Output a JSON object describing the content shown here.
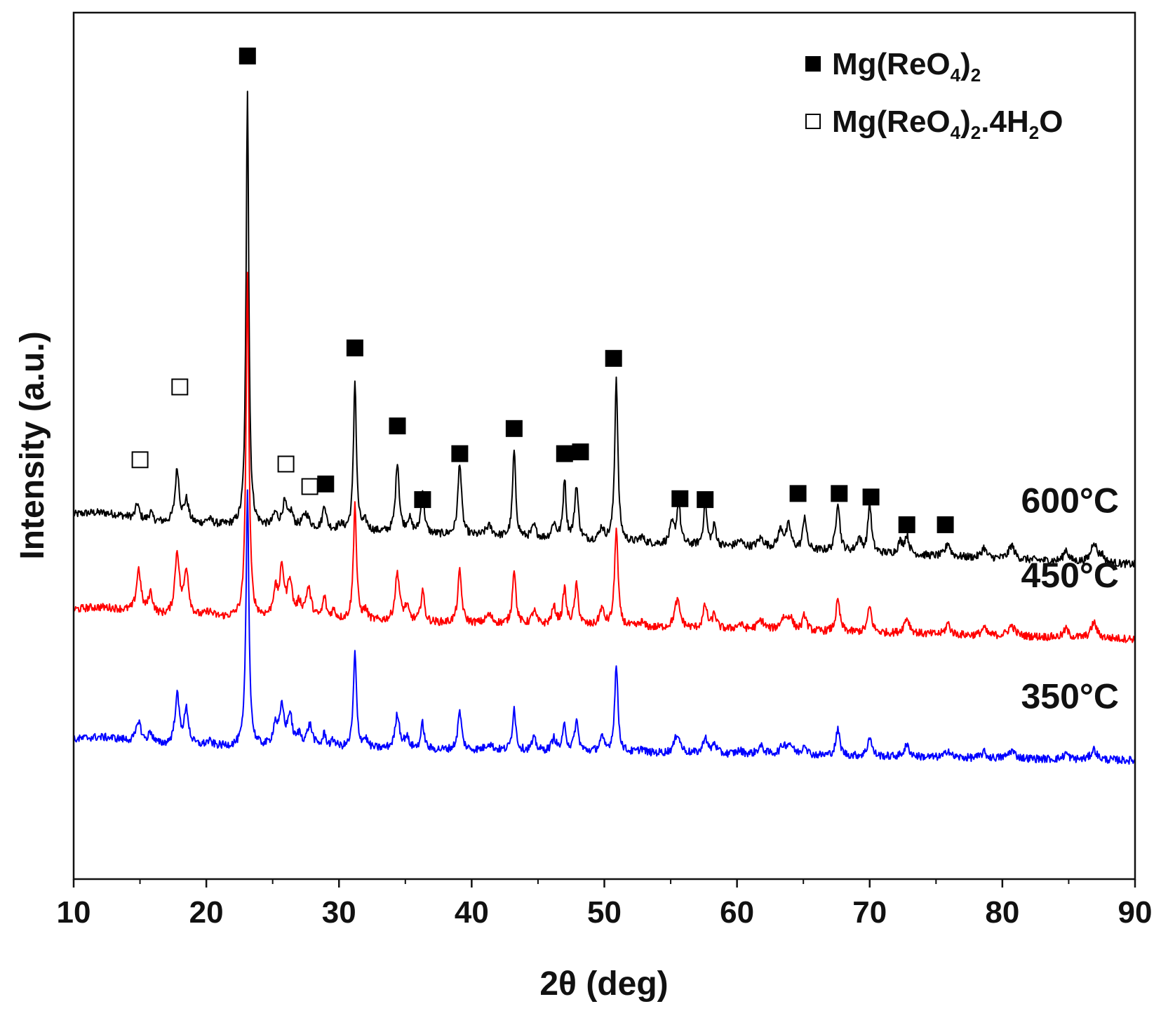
{
  "chart_data": {
    "type": "line",
    "xlabel": "2θ (deg)",
    "ylabel": "Intensity (a.u.)",
    "xlim": [
      10,
      90
    ],
    "xticks": [
      10,
      20,
      30,
      40,
      50,
      60,
      70,
      80,
      90
    ],
    "ylim": [
      0,
      100
    ],
    "yticks_shown": false,
    "legend": {
      "position": "top-right",
      "entries": [
        {
          "symbol": "filled-square",
          "name": "Mg(ReO4)2",
          "parts": [
            [
              "Mg(ReO",
              false
            ],
            [
              "4",
              true
            ],
            [
              ")",
              false
            ],
            [
              "2",
              true
            ]
          ]
        },
        {
          "symbol": "open-square",
          "name": "Mg(ReO4)2.4H2O",
          "parts": [
            [
              "Mg(ReO",
              false
            ],
            [
              "4",
              true
            ],
            [
              ")",
              false
            ],
            [
              "2",
              true
            ],
            [
              ".4H",
              false
            ],
            [
              "2",
              true
            ],
            [
              "O",
              false
            ]
          ]
        }
      ]
    },
    "series": [
      {
        "name": "600°C",
        "color": "#000000",
        "baseline": 41.5,
        "end_offset": -5.2,
        "peaks": [
          [
            14.8,
            1.8,
            0.15
          ],
          [
            15.8,
            1.0,
            0.15
          ],
          [
            17.8,
            6.2,
            0.18
          ],
          [
            18.5,
            2.6,
            0.2
          ],
          [
            20.2,
            0.6,
            0.3
          ],
          [
            23.1,
            50.5,
            0.12
          ],
          [
            25.2,
            1.5,
            0.2
          ],
          [
            25.9,
            2.8,
            0.2
          ],
          [
            26.4,
            1.6,
            0.18
          ],
          [
            27.5,
            1.7,
            0.3
          ],
          [
            28.9,
            2.9,
            0.15
          ],
          [
            30.1,
            0.6,
            0.2
          ],
          [
            31.2,
            17.5,
            0.13
          ],
          [
            32.0,
            1.0,
            0.2
          ],
          [
            34.4,
            8.2,
            0.16
          ],
          [
            35.3,
            1.6,
            0.2
          ],
          [
            36.3,
            5.0,
            0.15
          ],
          [
            39.1,
            8.5,
            0.16
          ],
          [
            41.3,
            1.2,
            0.3
          ],
          [
            43.2,
            10.0,
            0.14
          ],
          [
            44.7,
            1.4,
            0.2
          ],
          [
            46.2,
            1.8,
            0.2
          ],
          [
            47.0,
            7.0,
            0.13
          ],
          [
            47.9,
            6.3,
            0.16
          ],
          [
            49.8,
            1.5,
            0.2
          ],
          [
            50.9,
            19.0,
            0.14
          ],
          [
            52.8,
            0.7,
            0.2
          ],
          [
            55.1,
            2.2,
            0.2
          ],
          [
            55.6,
            5.0,
            0.15
          ],
          [
            57.6,
            5.0,
            0.15
          ],
          [
            58.3,
            2.4,
            0.15
          ],
          [
            60.2,
            0.7,
            0.3
          ],
          [
            61.8,
            1.1,
            0.3
          ],
          [
            63.3,
            2.2,
            0.25
          ],
          [
            63.9,
            2.6,
            0.2
          ],
          [
            65.1,
            4.0,
            0.15
          ],
          [
            67.6,
            5.8,
            0.17
          ],
          [
            69.2,
            1.6,
            0.2
          ],
          [
            70.0,
            5.8,
            0.15
          ],
          [
            72.3,
            1.3,
            0.2
          ],
          [
            72.8,
            2.1,
            0.2
          ],
          [
            75.9,
            1.6,
            0.2
          ],
          [
            78.6,
            1.2,
            0.2
          ],
          [
            80.7,
            1.6,
            0.25
          ],
          [
            84.8,
            1.4,
            0.2
          ],
          [
            86.9,
            2.4,
            0.25
          ],
          [
            87.5,
            0.8,
            0.2
          ]
        ]
      },
      {
        "name": "450°C",
        "color": "#ff0000",
        "baseline": 30.5,
        "end_offset": -2.8,
        "peaks": [
          [
            14.9,
            5.0,
            0.2
          ],
          [
            15.8,
            2.4,
            0.2
          ],
          [
            17.8,
            7.3,
            0.2
          ],
          [
            18.5,
            5.3,
            0.2
          ],
          [
            20.2,
            0.6,
            0.3
          ],
          [
            23.1,
            39.5,
            0.13
          ],
          [
            25.2,
            3.0,
            0.2
          ],
          [
            25.7,
            5.5,
            0.2
          ],
          [
            26.3,
            4.3,
            0.2
          ],
          [
            27.0,
            1.5,
            0.2
          ],
          [
            27.7,
            3.4,
            0.25
          ],
          [
            28.9,
            2.5,
            0.15
          ],
          [
            29.6,
            1.0,
            0.2
          ],
          [
            31.2,
            13.5,
            0.14
          ],
          [
            32.0,
            1.1,
            0.2
          ],
          [
            34.4,
            5.6,
            0.2
          ],
          [
            35.1,
            1.6,
            0.2
          ],
          [
            36.3,
            3.8,
            0.15
          ],
          [
            39.1,
            6.0,
            0.17
          ],
          [
            41.3,
            1.0,
            0.3
          ],
          [
            43.2,
            6.5,
            0.15
          ],
          [
            44.7,
            1.6,
            0.2
          ],
          [
            46.2,
            2.0,
            0.2
          ],
          [
            47.0,
            4.2,
            0.15
          ],
          [
            47.9,
            4.6,
            0.17
          ],
          [
            49.8,
            2.0,
            0.2
          ],
          [
            50.9,
            11.4,
            0.15
          ],
          [
            52.8,
            0.6,
            0.2
          ],
          [
            55.5,
            3.2,
            0.25
          ],
          [
            57.6,
            2.7,
            0.18
          ],
          [
            58.3,
            1.7,
            0.18
          ],
          [
            60.2,
            0.6,
            0.3
          ],
          [
            61.8,
            1.1,
            0.3
          ],
          [
            63.5,
            1.3,
            0.3
          ],
          [
            64.0,
            1.4,
            0.25
          ],
          [
            65.1,
            1.8,
            0.18
          ],
          [
            67.6,
            3.6,
            0.18
          ],
          [
            70.0,
            3.0,
            0.18
          ],
          [
            72.8,
            1.8,
            0.25
          ],
          [
            75.9,
            1.3,
            0.2
          ],
          [
            78.6,
            0.9,
            0.2
          ],
          [
            80.7,
            1.2,
            0.3
          ],
          [
            84.8,
            1.0,
            0.2
          ],
          [
            86.9,
            1.8,
            0.25
          ]
        ]
      },
      {
        "name": "350°C",
        "color": "#0000ff",
        "baseline": 15.5,
        "end_offset": -1.8,
        "peaks": [
          [
            14.9,
            2.5,
            0.2
          ],
          [
            15.8,
            1.3,
            0.2
          ],
          [
            17.8,
            5.7,
            0.2
          ],
          [
            18.5,
            4.0,
            0.2
          ],
          [
            20.2,
            0.5,
            0.3
          ],
          [
            23.1,
            29.5,
            0.13
          ],
          [
            25.2,
            2.5,
            0.2
          ],
          [
            25.7,
            4.3,
            0.2
          ],
          [
            26.3,
            3.6,
            0.2
          ],
          [
            27.0,
            1.3,
            0.2
          ],
          [
            27.8,
            2.5,
            0.25
          ],
          [
            28.9,
            1.5,
            0.15
          ],
          [
            29.6,
            0.8,
            0.2
          ],
          [
            31.2,
            11.0,
            0.14
          ],
          [
            32.0,
            1.0,
            0.2
          ],
          [
            34.4,
            4.0,
            0.2
          ],
          [
            35.1,
            1.3,
            0.2
          ],
          [
            36.3,
            3.0,
            0.15
          ],
          [
            39.1,
            4.5,
            0.17
          ],
          [
            41.3,
            0.8,
            0.3
          ],
          [
            43.2,
            5.0,
            0.15
          ],
          [
            44.7,
            1.4,
            0.2
          ],
          [
            46.2,
            1.5,
            0.2
          ],
          [
            47.0,
            3.0,
            0.15
          ],
          [
            47.9,
            3.5,
            0.17
          ],
          [
            49.8,
            1.6,
            0.2
          ],
          [
            50.9,
            10.0,
            0.15
          ],
          [
            52.8,
            0.5,
            0.2
          ],
          [
            55.5,
            2.3,
            0.25
          ],
          [
            57.6,
            2.0,
            0.18
          ],
          [
            58.3,
            1.2,
            0.18
          ],
          [
            60.2,
            0.4,
            0.3
          ],
          [
            61.8,
            0.9,
            0.3
          ],
          [
            63.5,
            1.0,
            0.3
          ],
          [
            64.0,
            1.1,
            0.25
          ],
          [
            65.1,
            1.3,
            0.18
          ],
          [
            67.6,
            3.0,
            0.18
          ],
          [
            70.0,
            2.3,
            0.18
          ],
          [
            72.8,
            1.3,
            0.25
          ],
          [
            75.9,
            0.9,
            0.2
          ],
          [
            78.6,
            0.7,
            0.2
          ],
          [
            80.7,
            0.9,
            0.3
          ],
          [
            84.8,
            0.7,
            0.2
          ],
          [
            86.9,
            1.2,
            0.25
          ]
        ]
      }
    ],
    "markers": {
      "filled": [
        {
          "x": 23.1,
          "y": 95.0
        },
        {
          "x": 29.0,
          "y": 45.6
        },
        {
          "x": 31.2,
          "y": 61.3
        },
        {
          "x": 34.4,
          "y": 52.3
        },
        {
          "x": 36.3,
          "y": 43.8
        },
        {
          "x": 39.1,
          "y": 49.1
        },
        {
          "x": 43.2,
          "y": 52.0
        },
        {
          "x": 47.0,
          "y": 49.1
        },
        {
          "x": 48.2,
          "y": 49.3
        },
        {
          "x": 50.7,
          "y": 60.1
        },
        {
          "x": 55.7,
          "y": 43.9
        },
        {
          "x": 57.6,
          "y": 43.8
        },
        {
          "x": 64.6,
          "y": 44.5
        },
        {
          "x": 67.7,
          "y": 44.5
        },
        {
          "x": 70.1,
          "y": 44.1
        },
        {
          "x": 72.8,
          "y": 40.9
        },
        {
          "x": 75.7,
          "y": 40.9
        }
      ],
      "open": [
        {
          "x": 15.0,
          "y": 48.4
        },
        {
          "x": 18.0,
          "y": 56.8
        },
        {
          "x": 26.0,
          "y": 47.9
        },
        {
          "x": 27.8,
          "y": 45.3
        }
      ]
    }
  }
}
